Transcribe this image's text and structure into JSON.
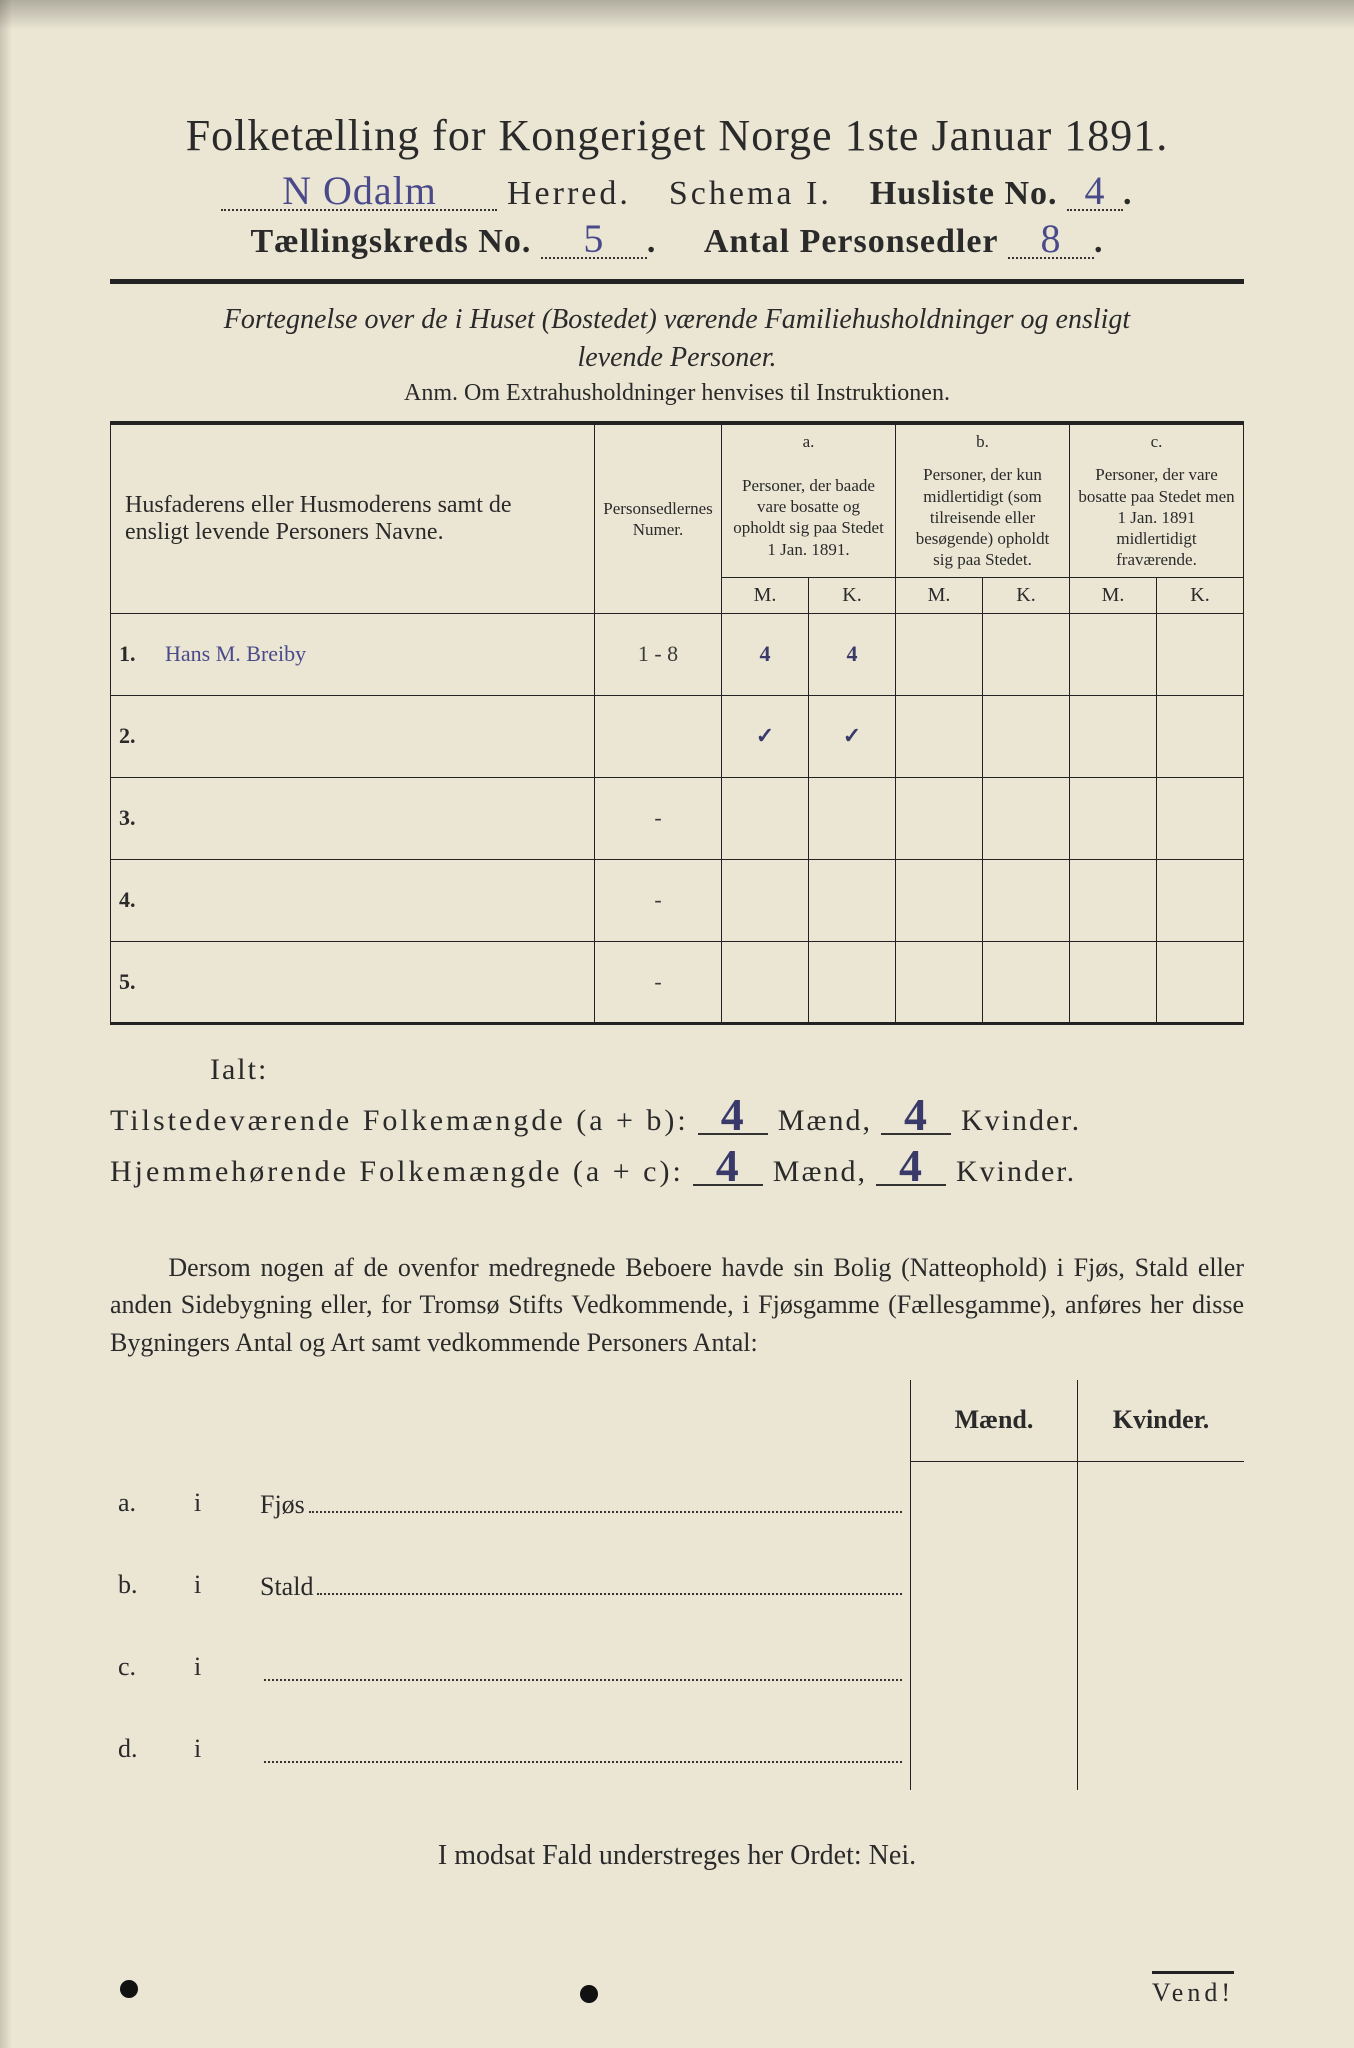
{
  "header": {
    "title": "Folketælling for Kongeriget Norge 1ste Januar 1891.",
    "herred_value": "N Odalm",
    "herred_label": "Herred.",
    "schema_label": "Schema I.",
    "husliste_label": "Husliste No.",
    "husliste_value": "4",
    "kreds_label": "Tællingskreds No.",
    "kreds_value": "5",
    "antal_label": "Antal Personsedler",
    "antal_value": "8"
  },
  "subtitle": {
    "line1": "Fortegnelse over de i Huset (Bostedet) værende Familiehusholdninger og ensligt",
    "line2": "levende Personer.",
    "anm": "Anm.  Om Extrahusholdninger henvises til Instruktionen."
  },
  "table": {
    "col_names": "Husfaderens eller Husmoderens samt de ensligt levende Personers Navne.",
    "col_numer": "Personsedlernes Numer.",
    "col_a_tag": "a.",
    "col_a": "Personer, der baade vare bosatte og opholdt sig paa Stedet 1 Jan. 1891.",
    "col_b_tag": "b.",
    "col_b": "Personer, der kun midlertidigt (som tilreisende eller besøgende) opholdt sig paa Stedet.",
    "col_c_tag": "c.",
    "col_c": "Personer, der vare bosatte paa Stedet men 1 Jan. 1891 midlertidigt fraværende.",
    "m": "M.",
    "k": "K.",
    "rows": [
      {
        "n": "1.",
        "name": "Hans M. Breiby",
        "numer": "1 - 8",
        "am": "4",
        "ak": "4",
        "bm": "",
        "bk": "",
        "cm": "",
        "ck": ""
      },
      {
        "n": "2.",
        "name": "",
        "numer": "",
        "am": "✓",
        "ak": "✓",
        "bm": "",
        "bk": "",
        "cm": "",
        "ck": ""
      },
      {
        "n": "3.",
        "name": "",
        "numer": "-",
        "am": "",
        "ak": "",
        "bm": "",
        "bk": "",
        "cm": "",
        "ck": ""
      },
      {
        "n": "4.",
        "name": "",
        "numer": "-",
        "am": "",
        "ak": "",
        "bm": "",
        "bk": "",
        "cm": "",
        "ck": ""
      },
      {
        "n": "5.",
        "name": "",
        "numer": "-",
        "am": "",
        "ak": "",
        "bm": "",
        "bk": "",
        "cm": "",
        "ck": ""
      }
    ]
  },
  "totals": {
    "ialt_label": "Ialt:",
    "line1_label": "Tilstedeværende Folkemængde (a + b):",
    "line2_label": "Hjemmehørende Folkemængde (a + c):",
    "maend": "Mænd,",
    "kvinder": "Kvinder.",
    "l1_m": "4",
    "l1_k": "4",
    "l2_m": "4",
    "l2_k": "4"
  },
  "paragraph": {
    "text": "Dersom nogen af de ovenfor medregnede Beboere havde sin Bolig (Natteophold) i Fjøs, Stald eller anden Sidebygning eller, for Tromsø Stifts Vedkommende, i Fjøsgamme (Fællesgamme), anføres her disse Bygningers Antal og Art samt vedkommende Personers Antal:"
  },
  "subtable": {
    "maend": "Mænd.",
    "kvinder": "Kvinder.",
    "rows": [
      {
        "tag": "a.",
        "i": "i",
        "label": "Fjøs"
      },
      {
        "tag": "b.",
        "i": "i",
        "label": "Stald"
      },
      {
        "tag": "c.",
        "i": "i",
        "label": ""
      },
      {
        "tag": "d.",
        "i": "i",
        "label": ""
      }
    ]
  },
  "nei": "I modsat Fald understreges her Ordet: Nei.",
  "vend": "Vend!",
  "colors": {
    "paper": "#ebe6d4",
    "ink": "#2a2a2a",
    "handwriting": "#4a4a8a"
  }
}
